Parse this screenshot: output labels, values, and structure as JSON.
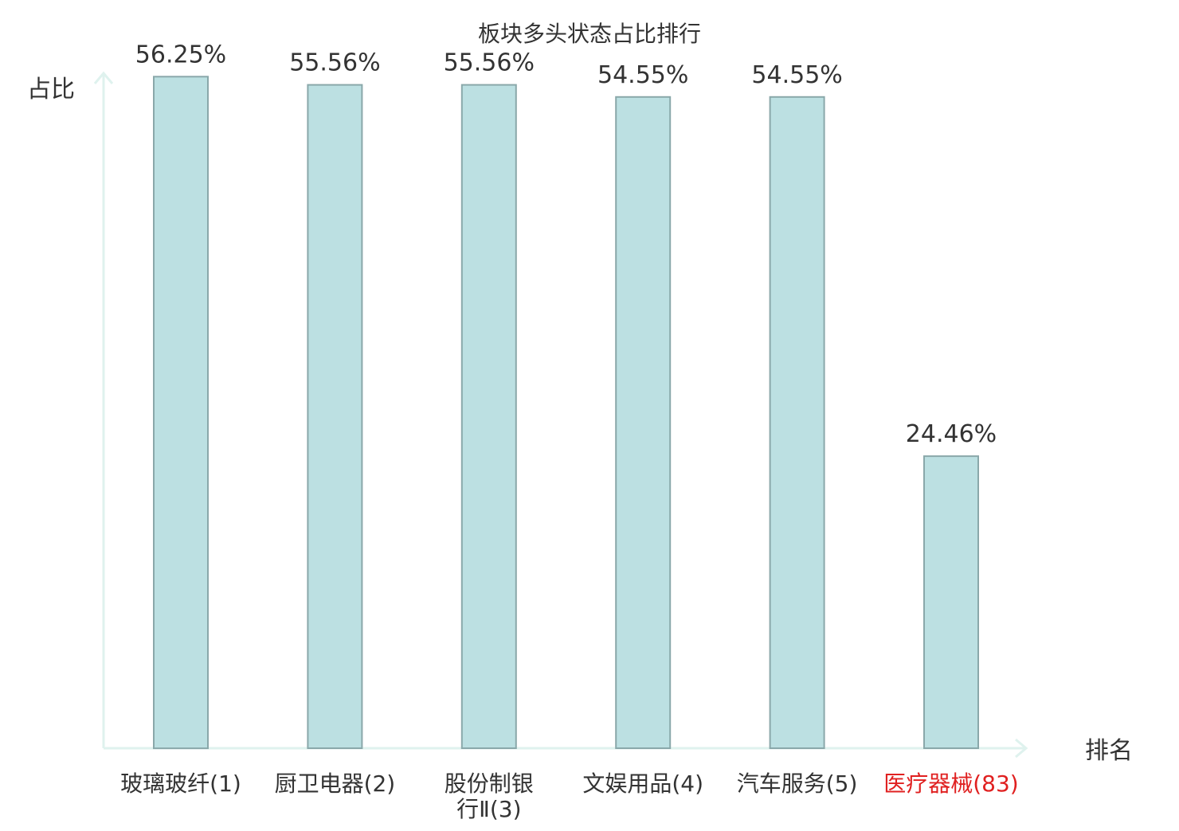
{
  "chart_data": {
    "type": "bar",
    "title": "板块多头状态占比排行",
    "ylabel": "占比",
    "xlabel": "排名",
    "ylim": [
      0,
      60
    ],
    "grid": false,
    "categories": [
      [
        "玻璃玻纤(1)"
      ],
      [
        "厨卫电器(2)"
      ],
      [
        "股份制银",
        "行Ⅱ(3)"
      ],
      [
        "文娱用品(4)"
      ],
      [
        "汽车服务(5)"
      ],
      [
        "医疗器械(83)"
      ]
    ],
    "values": [
      56.25,
      55.56,
      55.56,
      54.55,
      54.55,
      24.46
    ],
    "value_labels": [
      "56.25%",
      "55.56%",
      "55.56%",
      "54.55%",
      "54.55%",
      "24.46%"
    ],
    "highlight_index": 5,
    "colors": {
      "bar_fill": "#bce0e2",
      "bar_stroke": "#8aa8aa",
      "axis": "#dff2ee",
      "text": "#333333",
      "highlight_text": "#e02020"
    }
  }
}
